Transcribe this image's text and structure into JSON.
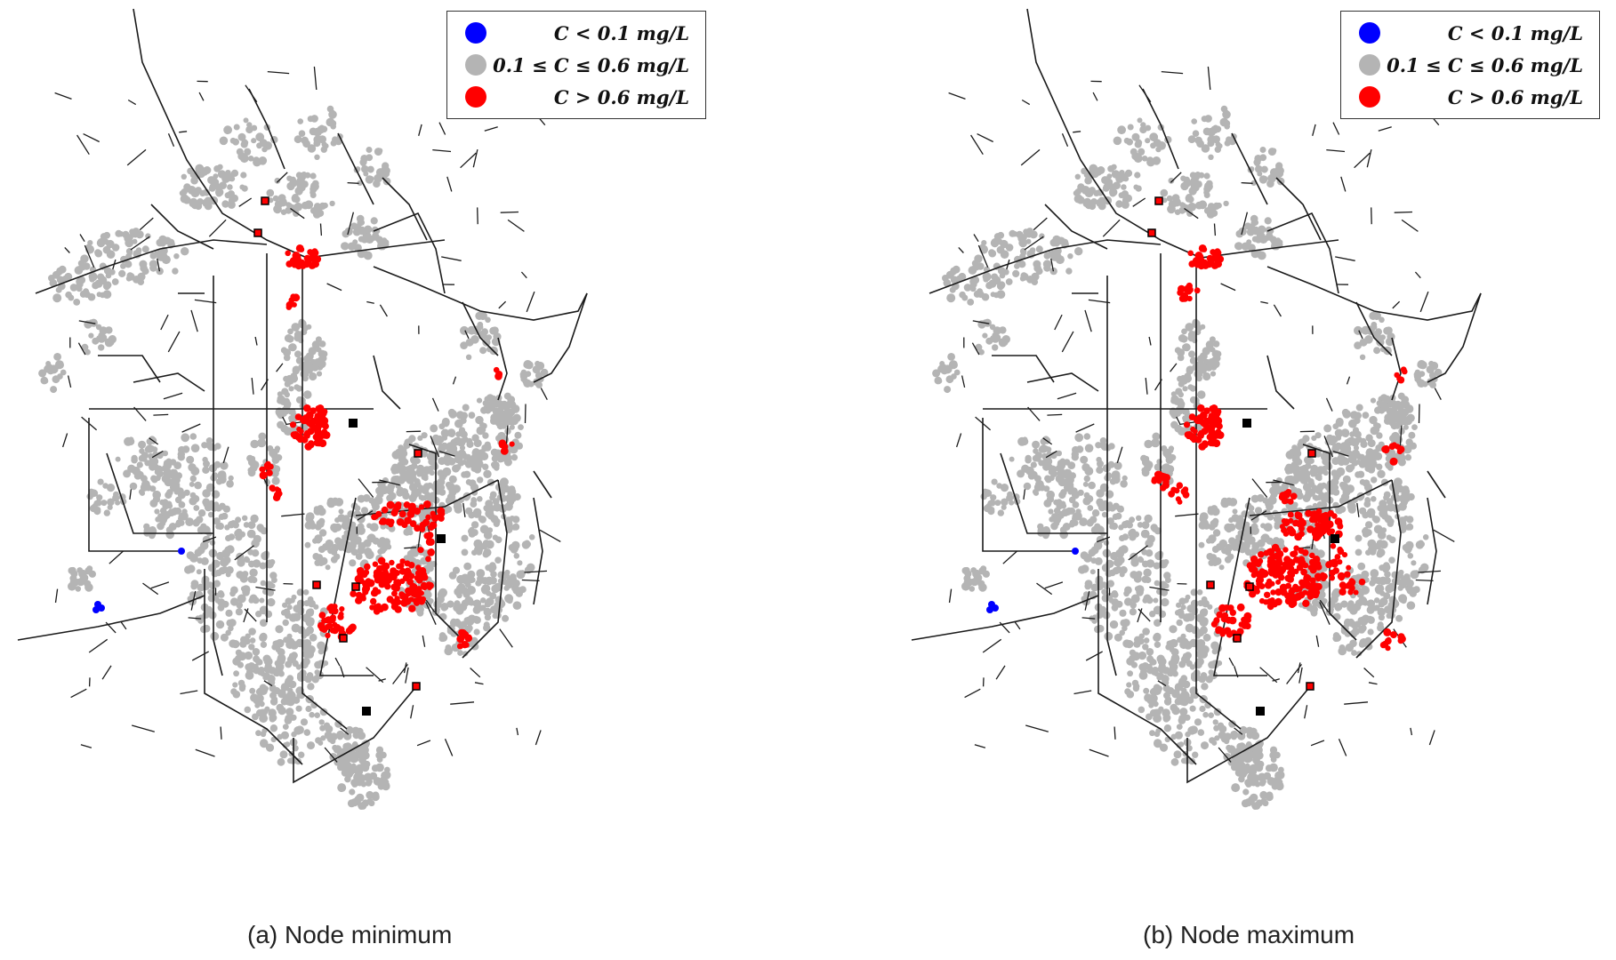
{
  "colors": {
    "below": "#0000ff",
    "within": "#b4b4b4",
    "above": "#ff0000",
    "pipe": "#1a1a1a",
    "facility": "#000000"
  },
  "legend": [
    {
      "label": "C < 0.1 mg/L",
      "color": "#0000ff",
      "icon": "blue-dot"
    },
    {
      "label": "0.1 ≤ C ≤ 0.6 mg/L",
      "color": "#b4b4b4",
      "icon": "gray-dot"
    },
    {
      "label": "C > 0.6 mg/L",
      "color": "#ff0000",
      "icon": "red-dot"
    }
  ],
  "panels": [
    {
      "id": "a",
      "caption": "(a) Node minimum"
    },
    {
      "id": "b",
      "caption": "(b) Node maximum"
    }
  ]
}
